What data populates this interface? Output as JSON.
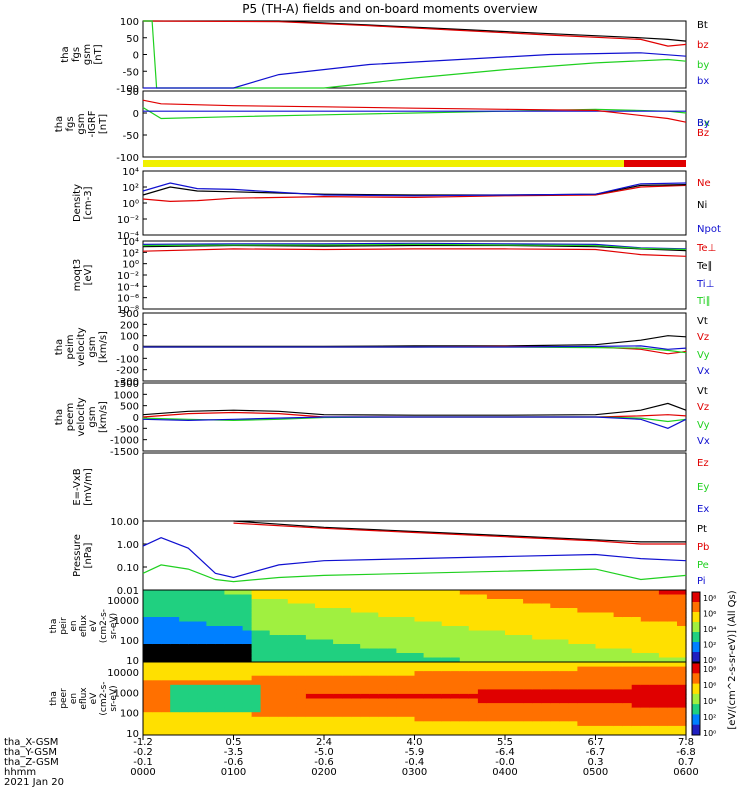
{
  "title": "P5 (TH-A) fields and on-board moments overview",
  "colors": {
    "black": "#000000",
    "red": "#e00000",
    "green": "#20d020",
    "blue": "#1010d0",
    "yellow": "#f0f000"
  },
  "chart_data": [
    {
      "type": "line",
      "ylabel": [
        "tha",
        "fgs",
        "gsm",
        "[nT]"
      ],
      "ylim": [
        -100,
        100
      ],
      "yticks": [
        "100",
        "50",
        "0",
        "-50",
        "-100"
      ],
      "series": [
        {
          "name": "Bt",
          "color": "black",
          "x": [
            0,
            1.5,
            2.5,
            3.5,
            4.5,
            5.5,
            5.8,
            6.0
          ],
          "values": [
            130,
            100,
            88,
            75,
            62,
            50,
            45,
            40
          ]
        },
        {
          "name": "bz",
          "color": "red",
          "x": [
            0,
            1.5,
            2.5,
            3.5,
            4.5,
            5.5,
            5.8,
            6.0
          ],
          "values": [
            120,
            98,
            86,
            72,
            58,
            45,
            25,
            30
          ]
        },
        {
          "name": "by",
          "color": "green",
          "x": [
            0,
            0.1,
            0.15,
            2.0,
            3.0,
            4.0,
            5.0,
            5.8,
            6.0
          ],
          "values": [
            100,
            100,
            -100,
            -100,
            -70,
            -45,
            -25,
            -15,
            -20
          ]
        },
        {
          "name": "bx",
          "color": "blue",
          "x": [
            0,
            1.0,
            1.5,
            2.5,
            3.5,
            4.5,
            5.5,
            6.0
          ],
          "values": [
            -100,
            -100,
            -60,
            -30,
            -15,
            0,
            5,
            -5
          ]
        }
      ]
    },
    {
      "type": "line",
      "ylabel": [
        "tha",
        "fgs",
        "gsm",
        "-IGRF",
        "[nT]"
      ],
      "ylim": [
        -125,
        55
      ],
      "yticks": [
        "50",
        "0",
        "-50",
        "-100"
      ],
      "series": [
        {
          "name": "Bx",
          "color": "green",
          "x": [
            0,
            0.2,
            1.0,
            2.0,
            3.0,
            4.0,
            5.0,
            5.8,
            6.0
          ],
          "values": [
            10,
            -20,
            -15,
            -10,
            -5,
            0,
            5,
            0,
            -5
          ]
        },
        {
          "name": "By",
          "color": "blue",
          "x": [
            0,
            1.0,
            3.0,
            5.0,
            6.0
          ],
          "values": [
            0,
            0,
            0,
            0,
            0
          ]
        },
        {
          "name": "Bz",
          "color": "red",
          "x": [
            0,
            0.2,
            1.0,
            2.0,
            3.0,
            4.0,
            5.0,
            5.8,
            6.0
          ],
          "values": [
            30,
            20,
            15,
            12,
            8,
            5,
            2,
            -20,
            -30
          ]
        }
      ]
    },
    {
      "type": "line",
      "ylabel": [
        "Density",
        "[cm-3]"
      ],
      "yscale": "log",
      "ylim": [
        -4,
        4
      ],
      "yticks": [
        "10⁴",
        "10²",
        "10⁰",
        "10⁻²",
        "10⁻⁴"
      ],
      "series": [
        {
          "name": "Ne",
          "color": "red",
          "x": [
            0,
            0.3,
            0.6,
            1.0,
            2.0,
            3.0,
            4.0,
            5.0,
            5.5,
            6.0
          ],
          "values": [
            0.5,
            0.2,
            0.3,
            0.6,
            0.8,
            0.7,
            0.9,
            1.0,
            2.0,
            2.2
          ]
        },
        {
          "name": "Ni",
          "color": "black",
          "x": [
            0,
            0.3,
            0.6,
            1.0,
            2.0,
            3.0,
            4.0,
            5.0,
            5.5,
            6.0
          ],
          "values": [
            1.0,
            2.0,
            1.5,
            1.4,
            1.1,
            1.0,
            1.0,
            1.1,
            2.2,
            2.3
          ]
        },
        {
          "name": "Npot",
          "color": "blue",
          "x": [
            0,
            0.3,
            0.6,
            1.0,
            2.0,
            3.0,
            4.0,
            5.0,
            5.5,
            6.0
          ],
          "values": [
            1.5,
            2.5,
            1.8,
            1.7,
            1.0,
            0.9,
            1.0,
            1.1,
            2.4,
            2.5
          ]
        }
      ]
    },
    {
      "type": "line",
      "ylabel": [
        "moqt3",
        "[eV]"
      ],
      "yscale": "log",
      "ylim": [
        -8,
        4
      ],
      "yticks": [
        "10⁴",
        "10²",
        "10⁰",
        "10⁻²",
        "10⁻⁴",
        "10⁻⁶",
        "10⁻⁸"
      ],
      "series": [
        {
          "name": "Te⊥",
          "color": "red",
          "x": [
            0,
            1.0,
            2.0,
            3.0,
            4.0,
            5.0,
            5.5,
            6.0
          ],
          "values": [
            2.2,
            2.6,
            2.5,
            2.6,
            2.6,
            2.5,
            1.6,
            1.3
          ]
        },
        {
          "name": "Te∥",
          "color": "black",
          "x": [
            0,
            1.0,
            2.0,
            3.0,
            4.0,
            5.0,
            5.5,
            6.0
          ],
          "values": [
            3.0,
            3.2,
            3.1,
            3.2,
            3.2,
            3.0,
            2.6,
            2.3
          ]
        },
        {
          "name": "Ti⊥",
          "color": "blue",
          "x": [
            0,
            1.0,
            2.0,
            3.0,
            4.0,
            5.0,
            5.5,
            6.0
          ],
          "values": [
            3.4,
            3.5,
            3.5,
            3.6,
            3.5,
            3.4,
            2.8,
            2.6
          ]
        },
        {
          "name": "Ti∥",
          "color": "green",
          "x": [
            0,
            1.0,
            2.0,
            3.0,
            4.0,
            5.0,
            5.5,
            6.0
          ],
          "values": [
            3.2,
            3.3,
            3.3,
            3.4,
            3.3,
            3.2,
            2.7,
            2.5
          ]
        }
      ]
    },
    {
      "type": "line",
      "ylabel": [
        "tha",
        "peim",
        "velocity",
        "gsm",
        "[km/s]"
      ],
      "ylim": [
        -300,
        300
      ],
      "yticks": [
        "300",
        "200",
        "100",
        "0",
        "-100",
        "-200",
        "-300"
      ],
      "series": [
        {
          "name": "Vt",
          "color": "black",
          "x": [
            0,
            1.0,
            2.0,
            3.0,
            4.0,
            5.0,
            5.5,
            5.8,
            6.0
          ],
          "values": [
            5,
            5,
            5,
            10,
            10,
            20,
            60,
            100,
            90
          ]
        },
        {
          "name": "Vz",
          "color": "red",
          "x": [
            0,
            1.0,
            2.0,
            3.0,
            4.0,
            5.0,
            5.5,
            5.8,
            6.0
          ],
          "values": [
            0,
            0,
            0,
            0,
            5,
            0,
            -20,
            -60,
            -40
          ]
        },
        {
          "name": "Vy",
          "color": "green",
          "x": [
            0,
            1.0,
            2.0,
            3.0,
            4.0,
            5.0,
            5.5,
            5.8,
            6.0
          ],
          "values": [
            0,
            0,
            0,
            0,
            0,
            -5,
            -10,
            -30,
            -50
          ]
        },
        {
          "name": "Vx",
          "color": "blue",
          "x": [
            0,
            1.0,
            2.0,
            3.0,
            4.0,
            5.0,
            5.5,
            5.8,
            6.0
          ],
          "values": [
            0,
            0,
            0,
            0,
            0,
            5,
            10,
            -20,
            -10
          ]
        }
      ]
    },
    {
      "type": "line",
      "ylabel": [
        "tha",
        "peem",
        "velocity",
        "gsm",
        "[km/s]"
      ],
      "ylim": [
        -1500,
        1500
      ],
      "yticks": [
        "1500",
        "1000",
        "500",
        "0",
        "-500",
        "-1000",
        "-1500"
      ],
      "series": [
        {
          "name": "Vt",
          "color": "black",
          "x": [
            0,
            0.5,
            1.0,
            1.5,
            2.0,
            3.0,
            4.0,
            5.0,
            5.5,
            5.8,
            6.0
          ],
          "values": [
            100,
            250,
            300,
            250,
            100,
            80,
            80,
            100,
            300,
            600,
            300
          ]
        },
        {
          "name": "Vz",
          "color": "red",
          "x": [
            0,
            0.5,
            1.0,
            1.5,
            2.0,
            3.0,
            4.0,
            5.0,
            5.5,
            5.8,
            6.0
          ],
          "values": [
            0,
            150,
            200,
            150,
            0,
            0,
            0,
            0,
            50,
            100,
            50
          ]
        },
        {
          "name": "Vy",
          "color": "green",
          "x": [
            0,
            0.5,
            1.0,
            1.5,
            2.0,
            3.0,
            4.0,
            5.0,
            5.5,
            5.8,
            6.0
          ],
          "values": [
            -50,
            -100,
            -150,
            -100,
            -20,
            0,
            0,
            0,
            -50,
            -200,
            -100
          ]
        },
        {
          "name": "Vx",
          "color": "blue",
          "x": [
            0,
            0.5,
            1.0,
            1.5,
            2.0,
            3.0,
            4.0,
            5.0,
            5.5,
            5.8,
            6.0
          ],
          "values": [
            -100,
            -150,
            -100,
            -50,
            0,
            0,
            0,
            0,
            -100,
            -500,
            -100
          ]
        }
      ]
    },
    {
      "type": "line",
      "ylabel": [
        "E=-VxB",
        "[mV/m]"
      ],
      "ylim": [
        0,
        1
      ],
      "yticks": [],
      "series": [
        {
          "name": "Ez",
          "color": "red",
          "x": [],
          "values": []
        },
        {
          "name": "Ey",
          "color": "green",
          "x": [],
          "values": []
        },
        {
          "name": "Ex",
          "color": "blue",
          "x": [],
          "values": []
        }
      ]
    },
    {
      "type": "line",
      "ylabel": [
        "Pressure",
        "[nPa]"
      ],
      "yscale": "log",
      "ylim": [
        -2,
        1.3
      ],
      "yticks": [
        "10.00",
        "1.00",
        "0.10",
        "0.01"
      ],
      "series": [
        {
          "name": "Pt",
          "color": "black",
          "x": [
            1.0,
            2.0,
            3.0,
            4.0,
            5.0,
            5.5,
            6.0
          ],
          "values": [
            1.3,
            1.0,
            0.8,
            0.6,
            0.4,
            0.3,
            0.3
          ]
        },
        {
          "name": "Pb",
          "color": "red",
          "x": [
            1.0,
            2.0,
            3.0,
            4.0,
            5.0,
            5.5,
            6.0
          ],
          "values": [
            1.2,
            0.95,
            0.75,
            0.55,
            0.35,
            0.2,
            0.2
          ]
        },
        {
          "name": "Pe",
          "color": "green",
          "x": [
            0,
            0.2,
            0.5,
            0.8,
            1.0,
            1.5,
            2.0,
            3.0,
            4.0,
            5.0,
            5.5,
            6.0
          ],
          "values": [
            -1.2,
            -0.8,
            -1.0,
            -1.5,
            -1.6,
            -1.4,
            -1.3,
            -1.2,
            -1.1,
            -1.0,
            -1.5,
            -1.3
          ]
        },
        {
          "name": "Pi",
          "color": "blue",
          "x": [
            0,
            0.2,
            0.5,
            0.8,
            1.0,
            1.5,
            2.0,
            3.0,
            4.0,
            5.0,
            5.5,
            6.0
          ],
          "values": [
            0.1,
            0.5,
            0.0,
            -1.2,
            -1.4,
            -0.8,
            -0.6,
            -0.5,
            -0.4,
            -0.3,
            -0.5,
            -0.6
          ]
        }
      ]
    }
  ],
  "spectrograms": [
    {
      "ylabel": [
        "tha",
        "peir",
        "en",
        "eflux",
        "eV",
        "(cm2-s-",
        "sr-eV)"
      ],
      "yticks": [
        "10000",
        "1000",
        "100",
        "10"
      ]
    },
    {
      "ylabel": [
        "tha",
        "peer",
        "en",
        "eflux",
        "eV",
        "(cm2-s-",
        "sr-eV)"
      ],
      "yticks": [
        "10000",
        "1000",
        "100",
        "10"
      ]
    }
  ],
  "colorbar": {
    "label": "[eV/(cm^2-s-sr-eV)] (All Qs)",
    "ticks_top": [
      "10⁸",
      "10⁶",
      "10⁴",
      "10²",
      "10⁰"
    ],
    "ticks_bottom": [
      "10⁸",
      "10⁶",
      "10⁴",
      "10²",
      "10⁰"
    ]
  },
  "x_axis": {
    "row_labels": [
      "tha_X-GSM",
      "tha_Y-GSM",
      "tha_Z-GSM",
      "hhmm",
      "2021 Jan 20"
    ],
    "ticks": [
      {
        "x": 0,
        "X": "-1.2",
        "Y": "-0.2",
        "Z": "-0.1",
        "hhmm": "0000"
      },
      {
        "x": 1,
        "X": "0.5",
        "Y": "-3.5",
        "Z": "-0.6",
        "hhmm": "0100"
      },
      {
        "x": 2,
        "X": "2.4",
        "Y": "-5.0",
        "Z": "-0.6",
        "hhmm": "0200"
      },
      {
        "x": 3,
        "X": "4.0",
        "Y": "-5.9",
        "Z": "-0.4",
        "hhmm": "0300"
      },
      {
        "x": 4,
        "X": "5.5",
        "Y": "-6.4",
        "Z": "-0.0",
        "hhmm": "0400"
      },
      {
        "x": 5,
        "X": "6.7",
        "Y": "-6.7",
        "Z": "0.3",
        "hhmm": "0500"
      },
      {
        "x": 6,
        "X": "7.8",
        "Y": "-6.8",
        "Z": "0.7",
        "hhmm": "0600"
      }
    ]
  }
}
